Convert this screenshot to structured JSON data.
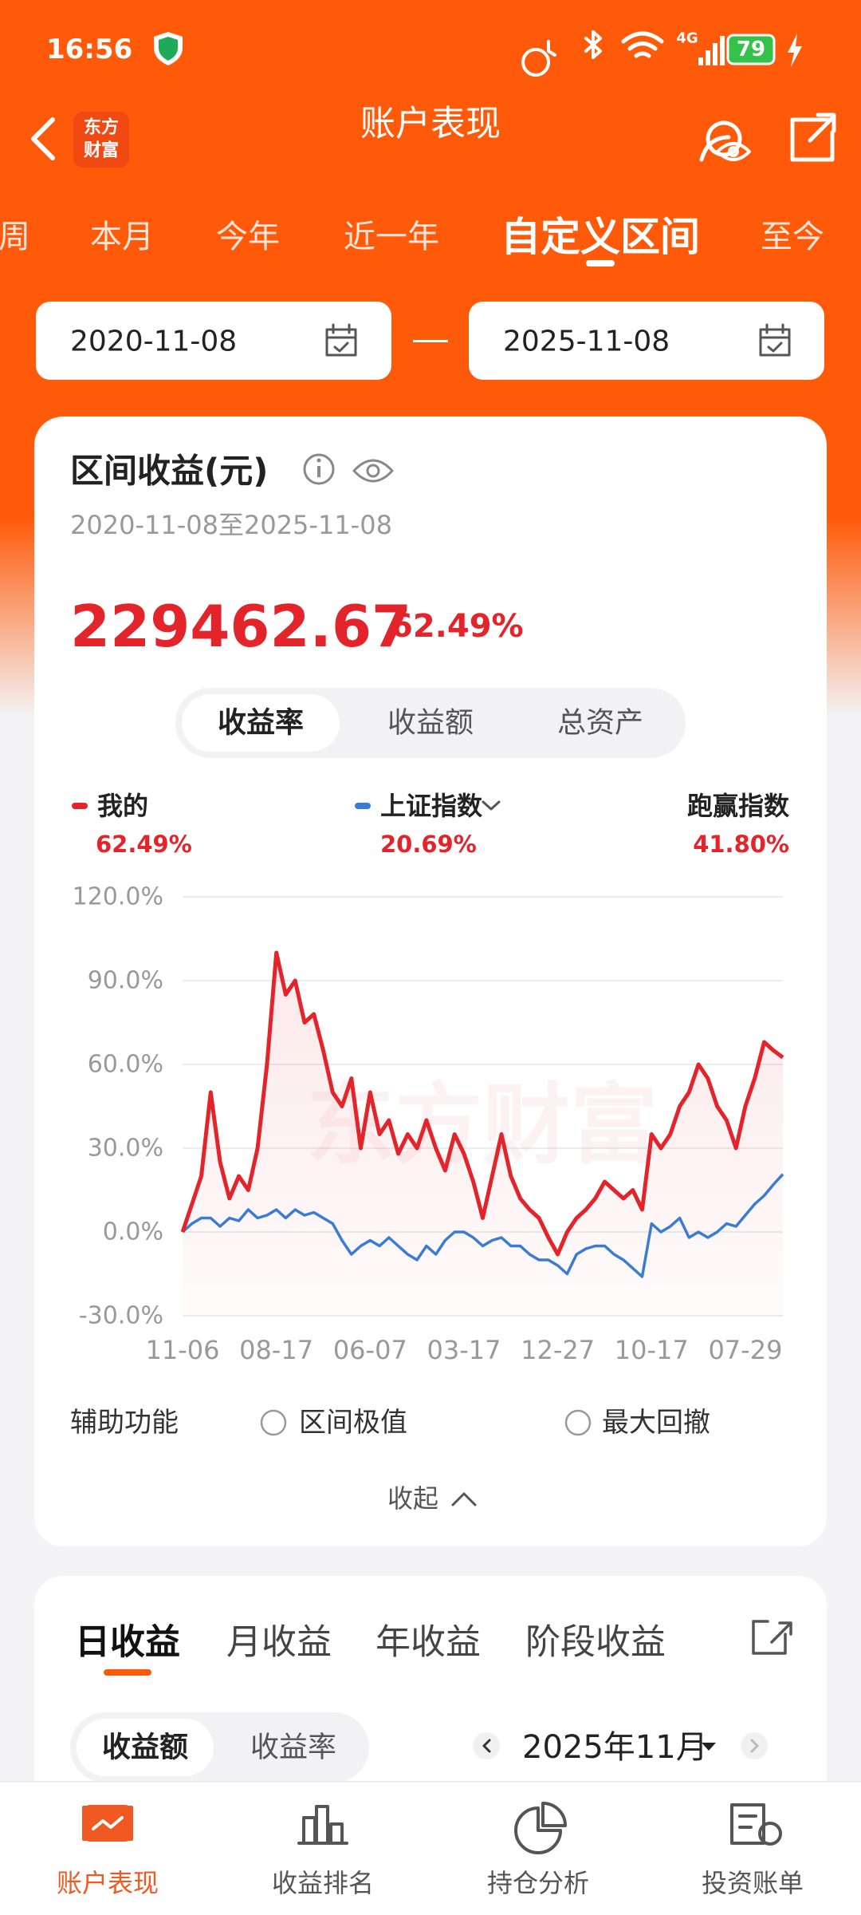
{
  "status_bar": {
    "time": "16:56",
    "network": "4G",
    "battery": "79"
  },
  "header": {
    "title": "账户表现",
    "logo": [
      "东方",
      "财富"
    ]
  },
  "period_tabs": {
    "items": [
      "周",
      "本月",
      "今年",
      "近一年",
      "自定义区间",
      "至今"
    ],
    "active": 4
  },
  "date_range": {
    "start": "2020-11-08",
    "end": "2025-11-08"
  },
  "summary": {
    "title": "区间收益(元)",
    "range": "2020-11-08至2025-11-08",
    "amount": "229462.67",
    "rate": "62.49%"
  },
  "metric_tabs": {
    "items": [
      "收益率",
      "收益额",
      "总资产"
    ],
    "active": 0
  },
  "chart_data": {
    "type": "line",
    "watermark": "东方财富",
    "x": [
      "11-06",
      null,
      null,
      null,
      null,
      null,
      null,
      null,
      null,
      null,
      "08-17",
      null,
      null,
      null,
      null,
      null,
      null,
      null,
      null,
      null,
      "06-07",
      null,
      null,
      null,
      null,
      null,
      null,
      null,
      null,
      null,
      "03-17",
      null,
      null,
      null,
      null,
      null,
      null,
      null,
      null,
      null,
      "12-27",
      null,
      null,
      null,
      null,
      null,
      null,
      null,
      null,
      null,
      "10-17",
      null,
      null,
      null,
      null,
      null,
      null,
      null,
      null,
      null,
      "07-29",
      null,
      null,
      null,
      null
    ],
    "series": [
      {
        "name": "我的",
        "color": "#e3242b",
        "latest": "62.49%",
        "values": [
          0,
          10,
          20,
          50,
          25,
          12,
          20,
          15,
          30,
          60,
          100,
          85,
          90,
          75,
          78,
          65,
          50,
          45,
          55,
          30,
          50,
          35,
          40,
          28,
          35,
          30,
          40,
          30,
          22,
          35,
          28,
          18,
          5,
          20,
          35,
          20,
          12,
          8,
          5,
          -2,
          -8,
          0,
          5,
          8,
          12,
          18,
          15,
          12,
          15,
          8,
          35,
          30,
          35,
          45,
          50,
          60,
          55,
          45,
          40,
          30,
          45,
          55,
          68,
          65,
          62.49
        ]
      },
      {
        "name": "上证指数",
        "color": "#3a7bd5",
        "latest": "20.69%",
        "values": [
          0,
          3,
          5,
          5,
          2,
          5,
          4,
          8,
          5,
          6,
          8,
          5,
          8,
          6,
          7,
          5,
          3,
          -3,
          -8,
          -5,
          -3,
          -5,
          -2,
          -5,
          -8,
          -10,
          -5,
          -8,
          -3,
          0,
          0,
          -2,
          -5,
          -3,
          -2,
          -5,
          -5,
          -8,
          -10,
          -10,
          -12,
          -15,
          -8,
          -6,
          -5,
          -5,
          -8,
          -10,
          -13,
          -16,
          3,
          0,
          2,
          5,
          -2,
          0,
          -2,
          0,
          3,
          2,
          6,
          10,
          13,
          17,
          20.69
        ]
      }
    ],
    "outperform": {
      "label": "跑赢指数",
      "value": "41.80%"
    },
    "ylim": [
      -30,
      120
    ],
    "yticks": [
      {
        "value": -30,
        "label": "-30.0%"
      },
      {
        "value": 0,
        "label": "0.0%"
      },
      {
        "value": 30,
        "label": "30.0%"
      },
      {
        "value": 60,
        "label": "60.0%"
      },
      {
        "value": 90,
        "label": "90.0%"
      },
      {
        "value": 120,
        "label": "120.0%"
      }
    ],
    "grid": true
  },
  "tools": {
    "label": "辅助功能",
    "options": [
      "区间极值",
      "最大回撤"
    ],
    "collapse": "收起"
  },
  "earnings": {
    "tabs": [
      "日收益",
      "月收益",
      "年收益",
      "阶段收益"
    ],
    "active": 0,
    "toggle": [
      "收益额",
      "收益率"
    ],
    "toggle_active": 0,
    "month": "2025年11月"
  },
  "bottom_nav": {
    "items": [
      "账户表现",
      "收益排名",
      "持仓分析",
      "投资账单"
    ],
    "active": 0
  }
}
